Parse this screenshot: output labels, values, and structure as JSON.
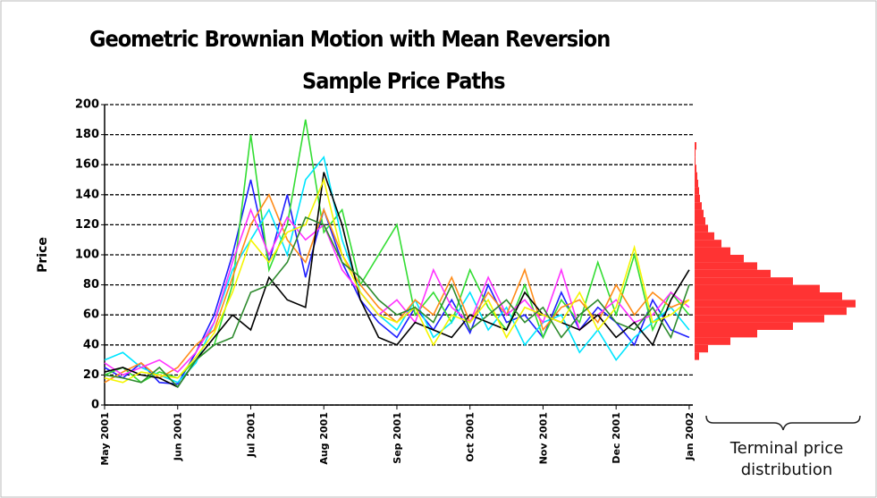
{
  "chart_data": [
    {
      "type": "line",
      "title": "Geometric Brownian Motion with Mean Reversion",
      "subtitle": "Sample Price Paths",
      "y_label": "Price",
      "x": [
        0,
        0.25,
        0.5,
        0.75,
        1,
        1.25,
        1.5,
        1.75,
        2,
        2.25,
        2.5,
        2.75,
        3,
        3.25,
        3.5,
        3.75,
        4,
        4.25,
        4.5,
        4.75,
        5,
        5.25,
        5.5,
        5.75,
        6,
        6.25,
        6.5,
        6.75,
        7,
        7.25,
        7.5,
        7.75,
        8
      ],
      "xlim": [
        0,
        8.05
      ],
      "xticks": [
        {
          "value": 0,
          "label": "May 2001"
        },
        {
          "value": 1,
          "label": "Jun 2001"
        },
        {
          "value": 2,
          "label": "Jul 2001"
        },
        {
          "value": 3,
          "label": "Aug 2001"
        },
        {
          "value": 4,
          "label": "Sep 2001"
        },
        {
          "value": 5,
          "label": "Oct 2001"
        },
        {
          "value": 6,
          "label": "Nov 2001"
        },
        {
          "value": 7,
          "label": "Dec 2001"
        },
        {
          "value": 8,
          "label": "Jan 2002"
        }
      ],
      "ylim": [
        0,
        200
      ],
      "yticks": [
        0,
        20,
        40,
        60,
        80,
        100,
        120,
        140,
        160,
        180,
        200
      ],
      "grid": true,
      "series": [
        {
          "color": "#1f1fff",
          "values": [
            25,
            18,
            28,
            15,
            14,
            35,
            60,
            100,
            150,
            95,
            140,
            85,
            130,
            95,
            70,
            55,
            45,
            65,
            50,
            70,
            48,
            80,
            55,
            60,
            45,
            75,
            50,
            65,
            55,
            40,
            70,
            50,
            45
          ]
        },
        {
          "color": "#33dd33",
          "values": [
            20,
            25,
            15,
            22,
            18,
            30,
            40,
            80,
            180,
            90,
            120,
            190,
            115,
            130,
            80,
            100,
            120,
            60,
            75,
            55,
            90,
            65,
            50,
            80,
            45,
            70,
            55,
            95,
            60,
            100,
            50,
            75,
            60
          ]
        },
        {
          "color": "#00e5ff",
          "values": [
            30,
            35,
            25,
            20,
            15,
            28,
            55,
            90,
            110,
            130,
            100,
            150,
            165,
            110,
            75,
            60,
            50,
            70,
            45,
            55,
            75,
            50,
            65,
            40,
            55,
            60,
            35,
            50,
            30,
            45,
            55,
            65,
            50
          ]
        },
        {
          "color": "#ff8c1a",
          "values": [
            15,
            22,
            28,
            18,
            25,
            40,
            50,
            85,
            120,
            140,
            110,
            95,
            130,
            100,
            80,
            65,
            55,
            70,
            60,
            85,
            55,
            75,
            60,
            90,
            50,
            65,
            70,
            55,
            80,
            60,
            75,
            65,
            70
          ]
        },
        {
          "color": "#ff33ff",
          "values": [
            28,
            20,
            25,
            30,
            22,
            35,
            55,
            95,
            130,
            100,
            125,
            110,
            120,
            90,
            75,
            60,
            70,
            55,
            90,
            65,
            55,
            85,
            60,
            70,
            55,
            90,
            50,
            60,
            70,
            55,
            60,
            75,
            65
          ]
        },
        {
          "color": "#000000",
          "values": [
            22,
            25,
            20,
            18,
            12,
            30,
            45,
            60,
            50,
            85,
            70,
            65,
            155,
            120,
            70,
            45,
            40,
            55,
            50,
            45,
            60,
            55,
            50,
            75,
            60,
            55,
            50,
            60,
            45,
            55,
            40,
            70,
            90
          ]
        },
        {
          "color": "#f5f500",
          "values": [
            18,
            15,
            22,
            20,
            18,
            32,
            48,
            75,
            110,
            95,
            115,
            120,
            150,
            100,
            75,
            60,
            55,
            65,
            40,
            60,
            55,
            70,
            45,
            65,
            60,
            55,
            75,
            50,
            65,
            105,
            55,
            60,
            70
          ]
        },
        {
          "color": "#2e8b2e",
          "values": [
            20,
            18,
            15,
            25,
            12,
            30,
            40,
            45,
            75,
            80,
            95,
            125,
            120,
            95,
            85,
            70,
            60,
            65,
            55,
            80,
            50,
            60,
            70,
            55,
            65,
            45,
            60,
            70,
            55,
            50,
            65,
            45,
            80
          ]
        }
      ]
    },
    {
      "type": "histogram",
      "orientation": "horizontal",
      "color": "#ff3333",
      "annotation": "Terminal price distribution",
      "bins": [
        30,
        35,
        40,
        45,
        50,
        55,
        60,
        65,
        70,
        75,
        80,
        85,
        90,
        95,
        100,
        105,
        110,
        115,
        120,
        125,
        130,
        135,
        140,
        145,
        150,
        155,
        160,
        165,
        170,
        175,
        180
      ],
      "counts": [
        5,
        15,
        40,
        70,
        110,
        145,
        170,
        180,
        165,
        140,
        110,
        85,
        70,
        55,
        40,
        30,
        22,
        15,
        12,
        10,
        8,
        6,
        5,
        4,
        3,
        2,
        1,
        1,
        2,
        0
      ]
    }
  ]
}
